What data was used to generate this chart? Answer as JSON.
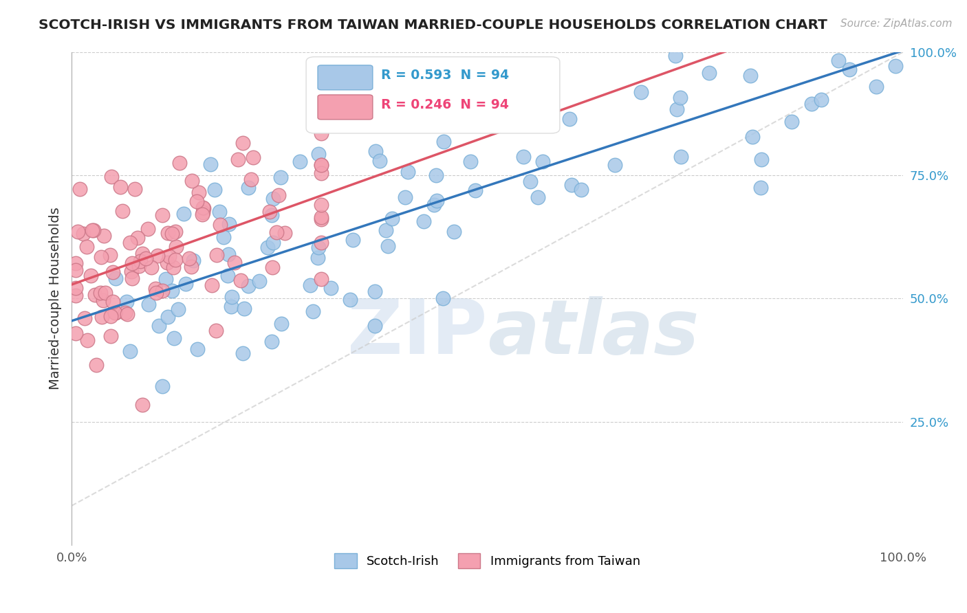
{
  "title": "SCOTCH-IRISH VS IMMIGRANTS FROM TAIWAN MARRIED-COUPLE HOUSEHOLDS CORRELATION CHART",
  "source": "Source: ZipAtlas.com",
  "ylabel": "Married-couple Households",
  "x_min": 0.0,
  "x_max": 1.0,
  "y_min": 0.0,
  "y_max": 1.0,
  "blue_R": 0.593,
  "pink_R": 0.246,
  "N": 94,
  "blue_color": "#a8c8e8",
  "blue_edge_color": "#7ab0d8",
  "blue_line_color": "#3377bb",
  "pink_color": "#f4a0b0",
  "pink_edge_color": "#cc7788",
  "pink_line_color": "#dd5566",
  "legend_R_blue_color": "#3399cc",
  "legend_R_pink_color": "#ee4477",
  "legend_N_blue_color": "#ee4477",
  "legend_N_pink_color": "#ee4477"
}
